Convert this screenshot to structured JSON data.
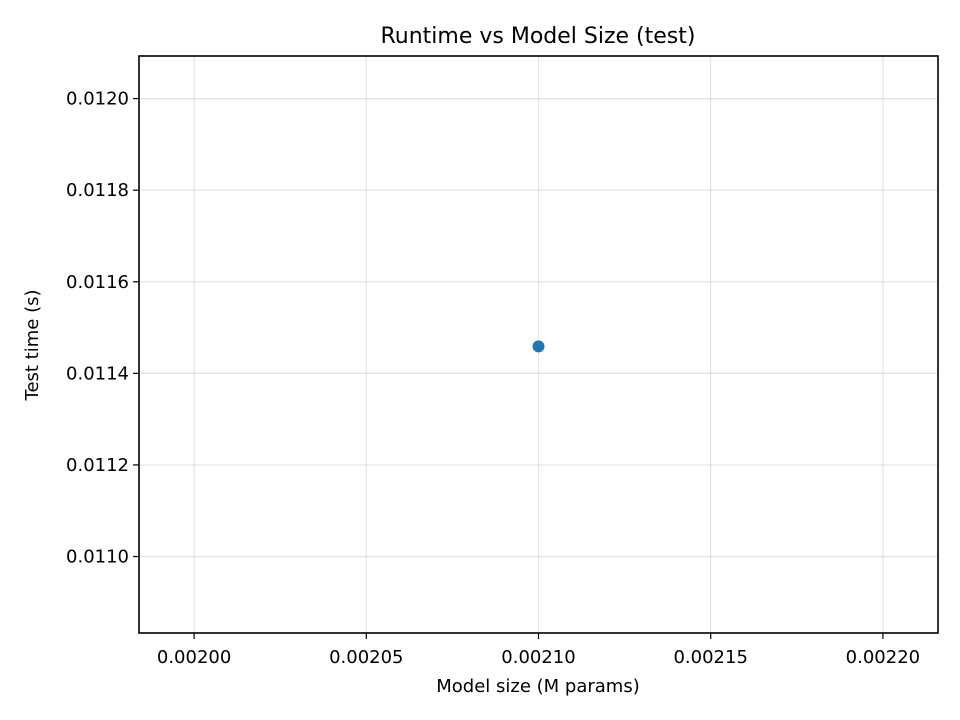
{
  "chart_data": {
    "type": "scatter",
    "title": "Runtime vs Model Size (test)",
    "xlabel": "Model size (M params)",
    "ylabel": "Test time (s)",
    "xlim": [
      0.001984,
      0.002216
    ],
    "ylim": [
      0.010833,
      0.012093
    ],
    "x_ticks": [
      "0.00200",
      "0.00205",
      "0.00210",
      "0.00215",
      "0.00220"
    ],
    "x_tick_values": [
      0.002,
      0.00205,
      0.0021,
      0.00215,
      0.0022
    ],
    "y_ticks": [
      "0.0110",
      "0.0112",
      "0.0114",
      "0.0116",
      "0.0118",
      "0.0120"
    ],
    "y_tick_values": [
      0.011,
      0.0112,
      0.0114,
      0.0116,
      0.0118,
      0.012
    ],
    "grid": true,
    "series": [
      {
        "color": "#1f77b4",
        "points": [
          {
            "x": 0.0021,
            "y": 0.011459
          }
        ]
      }
    ]
  }
}
